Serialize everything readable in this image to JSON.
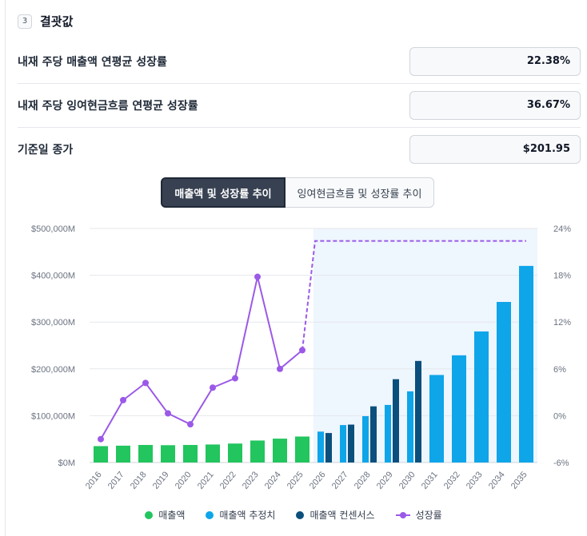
{
  "section": {
    "number": "3",
    "title": "결괏값"
  },
  "results": [
    {
      "label": "내재 주당 매출액 연평균 성장률",
      "value": "22.38%"
    },
    {
      "label": "내재 주당 잉여현금흐름 연평균 성장률",
      "value": "36.67%"
    },
    {
      "label": "기준일 종가",
      "value": "$201.95"
    }
  ],
  "tabs": [
    {
      "label": "매출액 및 성장률 추이",
      "active": true
    },
    {
      "label": "잉여현금흐름 및 성장률 추이",
      "active": false
    }
  ],
  "colors": {
    "actual": "#22c55e",
    "estimate": "#0ea5e9",
    "consensus": "#0b4f7c",
    "growth": "#9b59e8",
    "forecast_bg": "#eef6fe"
  },
  "chart_data": {
    "type": "bar",
    "categories": [
      "2016",
      "2017",
      "2018",
      "2019",
      "2020",
      "2021",
      "2022",
      "2023",
      "2024",
      "2025",
      "2026",
      "2027",
      "2028",
      "2029",
      "2030",
      "2031",
      "2032",
      "2033",
      "2034",
      "2035"
    ],
    "y_left": {
      "ticks": [
        "$0M",
        "$100,000M",
        "$200,000M",
        "$300,000M",
        "$400,000M",
        "$500,000M"
      ],
      "ylim": [
        0,
        500000
      ]
    },
    "y_right": {
      "ticks": [
        "-6%",
        "0%",
        "6%",
        "12%",
        "18%",
        "24%"
      ],
      "ylim": [
        -6,
        24
      ]
    },
    "forecast_region": {
      "from": "2026",
      "to": "2035"
    },
    "grid": true,
    "legend_position": "bottom",
    "series": [
      {
        "name": "매출액",
        "kind": "bar",
        "values": [
          35000,
          36000,
          37500,
          37000,
          37500,
          38500,
          40500,
          47000,
          51000,
          55500,
          null,
          null,
          null,
          null,
          null,
          null,
          null,
          null,
          null,
          null
        ]
      },
      {
        "name": "매출액 추정치",
        "kind": "bar",
        "values": [
          null,
          null,
          null,
          null,
          null,
          null,
          null,
          null,
          null,
          null,
          66000,
          80000,
          99000,
          123000,
          152000,
          187000,
          229000,
          280000,
          343000,
          420000
        ]
      },
      {
        "name": "매출액 컨센서스",
        "kind": "bar",
        "values": [
          null,
          null,
          null,
          null,
          null,
          null,
          null,
          null,
          null,
          null,
          63000,
          81000,
          120000,
          178000,
          217000,
          null,
          null,
          null,
          null,
          null
        ]
      },
      {
        "name": "성장률",
        "kind": "line",
        "axis": "right",
        "values": [
          -3.0,
          2.0,
          4.2,
          0.3,
          -1.1,
          3.6,
          4.8,
          17.8,
          6.0,
          8.4,
          22.4,
          22.4,
          22.4,
          22.4,
          22.4,
          22.4,
          22.4,
          22.4,
          22.4,
          22.4
        ],
        "dashed_from": "2025"
      }
    ]
  }
}
